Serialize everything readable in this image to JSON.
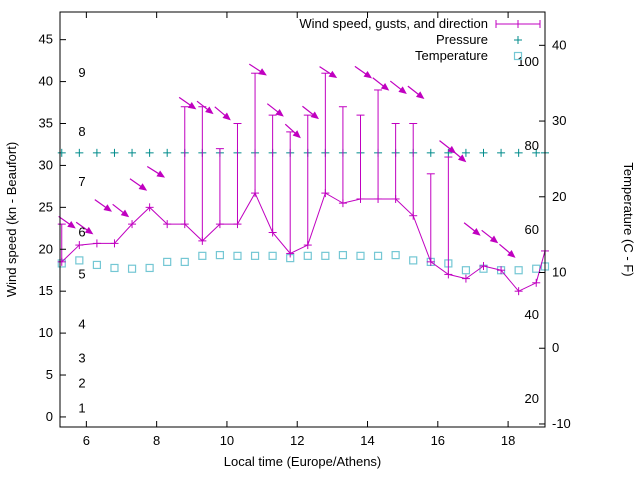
{
  "chart_data": {
    "type": "line",
    "title": "",
    "xlabel": "Local time (Europe/Athens)",
    "ylabel_left": "Wind speed (kn - Beaufort)",
    "ylabel_right": "Temperature (C - F)",
    "x_range": [
      5.25,
      19.05
    ],
    "x_ticks": [
      6,
      8,
      10,
      12,
      14,
      16,
      18
    ],
    "y_left_range": [
      -1.2,
      48.3
    ],
    "y_left_ticks": [
      0,
      5,
      10,
      15,
      20,
      25,
      30,
      35,
      40,
      45
    ],
    "y_right_range": [
      -10.4,
      44.4
    ],
    "y_right_ticks": [
      -10,
      0,
      10,
      20,
      30,
      40
    ],
    "grid": false,
    "legend_position": "top-right-inside",
    "colors": {
      "wind": "#c000c0",
      "pressure": "#008b8b",
      "temperature": "#74c7d4",
      "axis": "#000000"
    },
    "legend": [
      {
        "label": "Wind speed, gusts, and direction",
        "type": "errorbar",
        "color": "#c000c0"
      },
      {
        "label": "Pressure",
        "type": "plus",
        "color": "#008b8b"
      },
      {
        "label": "Temperature",
        "type": "square",
        "color": "#74c7d4"
      }
    ],
    "beaufort_labels": [
      {
        "label": "1",
        "kn": 1
      },
      {
        "label": "2",
        "kn": 4
      },
      {
        "label": "3",
        "kn": 7
      },
      {
        "label": "4",
        "kn": 11
      },
      {
        "label": "5",
        "kn": 17
      },
      {
        "label": "6",
        "kn": 22
      },
      {
        "label": "7",
        "kn": 28
      },
      {
        "label": "8",
        "kn": 34
      },
      {
        "label": "9",
        "kn": 41
      }
    ],
    "fahrenheit_labels": [
      {
        "label": "20",
        "c": -6.7
      },
      {
        "label": "40",
        "c": 4.4
      },
      {
        "label": "60",
        "c": 15.6
      },
      {
        "label": "80",
        "c": 26.7
      },
      {
        "label": "100",
        "c": 37.8
      }
    ],
    "series": {
      "time": [
        5.3,
        5.8,
        6.3,
        6.8,
        7.3,
        7.8,
        8.3,
        8.8,
        9.3,
        9.8,
        10.3,
        10.8,
        11.3,
        11.8,
        12.3,
        12.8,
        13.3,
        13.8,
        14.3,
        14.8,
        15.3,
        15.8,
        16.3,
        16.8,
        17.3,
        17.8,
        18.3,
        18.8,
        19.05
      ],
      "wind_kn": [
        18.5,
        20.5,
        20.7,
        20.7,
        23,
        25,
        23,
        23,
        21,
        23,
        23,
        26.7,
        22,
        19.5,
        20.5,
        26.7,
        25.5,
        26,
        26,
        26,
        24,
        18.5,
        17,
        16.5,
        18,
        17.5,
        15,
        16,
        19.8
      ],
      "gust_kn": [
        23,
        20.5,
        20.7,
        20.7,
        23,
        25,
        23,
        37,
        37,
        32,
        35,
        41,
        36,
        34,
        36,
        41,
        37,
        36,
        39,
        35,
        35,
        29,
        31,
        16.5,
        18,
        17.5,
        15,
        16,
        19.8
      ],
      "pressure_display_kn": 31.5,
      "temperature_c": [
        11.2,
        11.6,
        11.0,
        10.6,
        10.5,
        10.6,
        11.4,
        11.4,
        12.2,
        12.3,
        12.2,
        12.2,
        12.2,
        11.9,
        12.2,
        12.2,
        12.3,
        12.2,
        12.2,
        12.3,
        11.6,
        11.4,
        11.2,
        10.3,
        10.5,
        10.3,
        10.3,
        10.5,
        10.8
      ]
    },
    "wind_arrows": [
      {
        "x": 5.42,
        "kn": 23.3,
        "rot": 35
      },
      {
        "x": 5.92,
        "kn": 22.6,
        "rot": 35
      },
      {
        "x": 6.45,
        "kn": 25.3,
        "rot": 35
      },
      {
        "x": 6.95,
        "kn": 24.7,
        "rot": 38
      },
      {
        "x": 7.45,
        "kn": 27.8,
        "rot": 35
      },
      {
        "x": 7.95,
        "kn": 29.3,
        "rot": 32
      },
      {
        "x": 8.85,
        "kn": 37.5,
        "rot": 35
      },
      {
        "x": 9.35,
        "kn": 37.0,
        "rot": 38
      },
      {
        "x": 9.85,
        "kn": 36.3,
        "rot": 40
      },
      {
        "x": 10.85,
        "kn": 41.5,
        "rot": 33
      },
      {
        "x": 11.35,
        "kn": 36.7,
        "rot": 38
      },
      {
        "x": 11.85,
        "kn": 34.2,
        "rot": 42
      },
      {
        "x": 12.35,
        "kn": 36.4,
        "rot": 38
      },
      {
        "x": 12.85,
        "kn": 41.2,
        "rot": 33
      },
      {
        "x": 13.85,
        "kn": 41.2,
        "rot": 35
      },
      {
        "x": 14.35,
        "kn": 39.8,
        "rot": 38
      },
      {
        "x": 14.85,
        "kn": 39.4,
        "rot": 38
      },
      {
        "x": 15.35,
        "kn": 38.8,
        "rot": 38
      },
      {
        "x": 16.25,
        "kn": 32.3,
        "rot": 38
      },
      {
        "x": 16.55,
        "kn": 31.3,
        "rot": 40
      },
      {
        "x": 16.95,
        "kn": 22.5,
        "rot": 38
      },
      {
        "x": 17.45,
        "kn": 21.6,
        "rot": 38
      },
      {
        "x": 17.95,
        "kn": 19.9,
        "rot": 40
      }
    ]
  }
}
